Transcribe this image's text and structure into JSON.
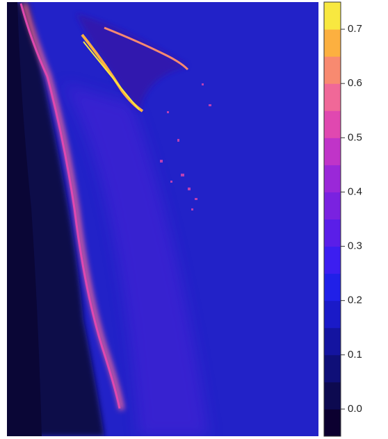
{
  "colorbar": {
    "lim": [
      -0.05,
      0.75
    ],
    "ticks": [
      {
        "value": 0,
        "label": "0.0"
      },
      0.1,
      0.2,
      0.3,
      0.4,
      0.5,
      0.6,
      0.7
    ],
    "colors": [
      "#0c0030",
      "#0d0a50",
      "#0f0f78",
      "#1414a0",
      "#1a1ac8",
      "#2020e8",
      "#3c1ef0",
      "#5a1ee8",
      "#7a22e0",
      "#9a28d8",
      "#c034c8",
      "#e048b0",
      "#f06898",
      "#f88a70",
      "#fcb040",
      "#f8e840"
    ]
  }
}
